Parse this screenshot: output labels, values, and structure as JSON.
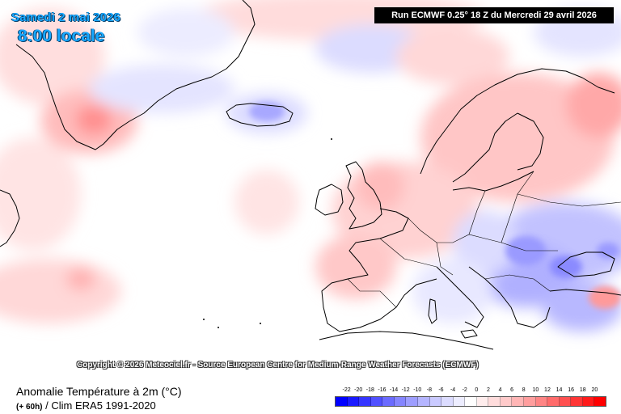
{
  "header": {
    "date": "Samedi 2 mai 2026",
    "time": "8:00 locale",
    "run": "Run ECMWF 0.25° 18 Z du Mercredi 29 avril 2026"
  },
  "copyright": "Copyright © 2026 Meteociel.fr - Source European Centre for Medium-Range Weather Forecasts (ECMWF)",
  "legend": {
    "title": "Anomalie Température à 2m (°C)",
    "lead": "(+ 60h)",
    "clim": "/ Clim ERA5 1991-2020",
    "ticks": [
      "-22",
      "-20",
      "-18",
      "-16",
      "-14",
      "-12",
      "-10",
      "-8",
      "-6",
      "-4",
      "-2",
      "0",
      "2",
      "4",
      "6",
      "8",
      "10",
      "12",
      "14",
      "16",
      "18",
      "20"
    ],
    "colors": [
      "#0000ff",
      "#1a1aff",
      "#3535ff",
      "#5050ff",
      "#6b6bff",
      "#8585ff",
      "#9e9eff",
      "#b5b5ff",
      "#cacaff",
      "#dcdcff",
      "#ededff",
      "#ffffff",
      "#ffeded",
      "#ffdcdc",
      "#ffcaca",
      "#ffb5b5",
      "#ff9e9e",
      "#ff8585",
      "#ff6b6b",
      "#ff5050",
      "#ff3535",
      "#ff1a1a",
      "#ff0000"
    ]
  }
}
